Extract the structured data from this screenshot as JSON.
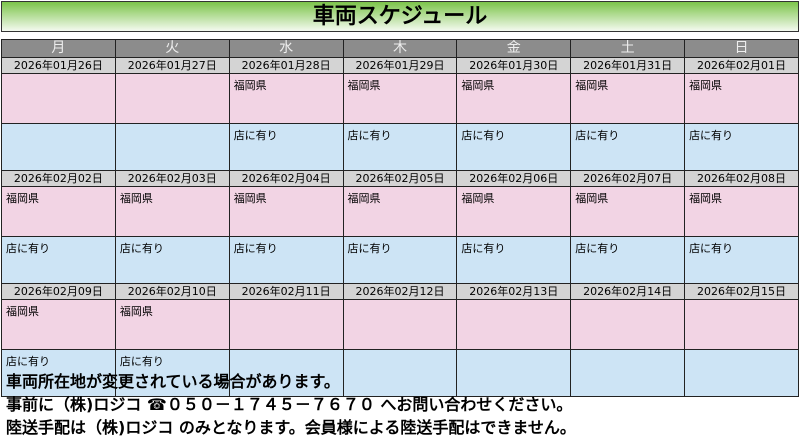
{
  "title": "車両スケジュール",
  "weekdays": [
    "月",
    "火",
    "水",
    "木",
    "金",
    "土",
    "日"
  ],
  "weeks": [
    {
      "days": [
        {
          "date": "2026年01月26日",
          "location": "",
          "status": ""
        },
        {
          "date": "2026年01月27日",
          "location": "",
          "status": ""
        },
        {
          "date": "2026年01月28日",
          "location": "福岡県",
          "status": "店に有り"
        },
        {
          "date": "2026年01月29日",
          "location": "福岡県",
          "status": "店に有り"
        },
        {
          "date": "2026年01月30日",
          "location": "福岡県",
          "status": "店に有り"
        },
        {
          "date": "2026年01月31日",
          "location": "福岡県",
          "status": "店に有り"
        },
        {
          "date": "2026年02月01日",
          "location": "福岡県",
          "status": "店に有り"
        }
      ]
    },
    {
      "days": [
        {
          "date": "2026年02月02日",
          "location": "福岡県",
          "status": "店に有り"
        },
        {
          "date": "2026年02月03日",
          "location": "福岡県",
          "status": "店に有り"
        },
        {
          "date": "2026年02月04日",
          "location": "福岡県",
          "status": "店に有り"
        },
        {
          "date": "2026年02月05日",
          "location": "福岡県",
          "status": "店に有り"
        },
        {
          "date": "2026年02月06日",
          "location": "福岡県",
          "status": "店に有り"
        },
        {
          "date": "2026年02月07日",
          "location": "福岡県",
          "status": "店に有り"
        },
        {
          "date": "2026年02月08日",
          "location": "福岡県",
          "status": "店に有り"
        }
      ]
    },
    {
      "days": [
        {
          "date": "2026年02月09日",
          "location": "福岡県",
          "status": "店に有り"
        },
        {
          "date": "2026年02月10日",
          "location": "福岡県",
          "status": "店に有り"
        },
        {
          "date": "2026年02月11日",
          "location": "",
          "status": ""
        },
        {
          "date": "2026年02月12日",
          "location": "",
          "status": ""
        },
        {
          "date": "2026年02月13日",
          "location": "",
          "status": ""
        },
        {
          "date": "2026年02月14日",
          "location": "",
          "status": ""
        },
        {
          "date": "2026年02月15日",
          "location": "",
          "status": ""
        }
      ]
    }
  ],
  "notes": [
    "車両所在地が変更されている場合があります。",
    "事前に（株)ロジコ ☎０５０－１７４５－７６７０ へお問い合わせください。",
    "陸送手配は（株)ロジコ のみとなります。会員様による陸送手配はできません。"
  ]
}
